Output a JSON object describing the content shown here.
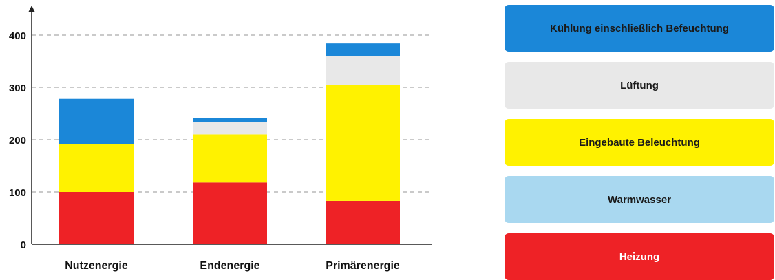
{
  "chart_data": {
    "type": "bar",
    "stacked": true,
    "categories": [
      "Nutzenergie",
      "Endenergie",
      "Primärenergie"
    ],
    "ylim": [
      0,
      400
    ],
    "yticks": [
      0,
      100,
      200,
      300,
      400
    ],
    "grid": true,
    "legend_position": "right",
    "series": [
      {
        "name": "Heizung",
        "color": "#ee2226",
        "values": [
          100,
          118,
          83
        ]
      },
      {
        "name": "Warmwasser",
        "color": "#a9d8f0",
        "values": [
          0,
          0,
          0
        ]
      },
      {
        "name": "Eingebaute Beleuchtung",
        "color": "#fff200",
        "values": [
          92,
          92,
          222
        ]
      },
      {
        "name": "Lüftung",
        "color": "#e8e8e8",
        "values": [
          0,
          23,
          55
        ]
      },
      {
        "name": "Kühlung einschließlich Befeuchtung",
        "color": "#1b87d8",
        "values": [
          86,
          8,
          24
        ]
      }
    ]
  },
  "legend": [
    {
      "label": "Kühlung einschließlich Befeuchtung",
      "color": "#1b87d8",
      "text_color": "#1a1a1a"
    },
    {
      "label": "Lüftung",
      "color": "#e8e8e8",
      "text_color": "#1a1a1a"
    },
    {
      "label": "Eingebaute Beleuchtung",
      "color": "#fff200",
      "text_color": "#1a1a1a"
    },
    {
      "label": "Warmwasser",
      "color": "#a9d8f0",
      "text_color": "#1a1a1a"
    },
    {
      "label": "Heizung",
      "color": "#ee2226",
      "text_color": "#ffffff"
    }
  ]
}
